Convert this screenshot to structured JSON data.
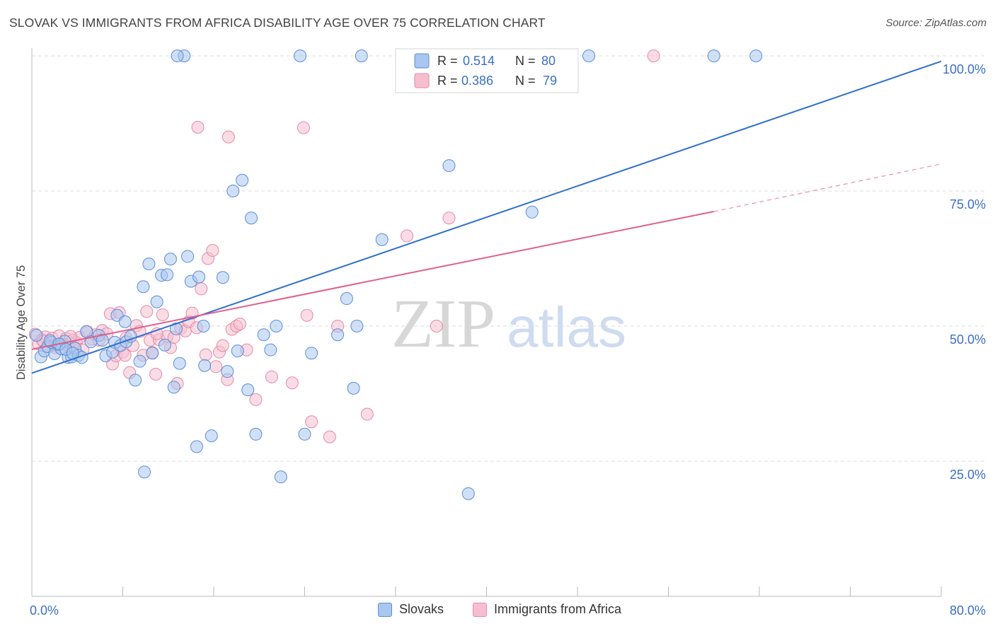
{
  "title": "SLOVAK VS IMMIGRANTS FROM AFRICA DISABILITY AGE OVER 75 CORRELATION CHART",
  "source": "Source: ZipAtlas.com",
  "watermark": {
    "zip": "ZIP",
    "atlas": "atlas"
  },
  "colors": {
    "blue_fill": "#a9c6ef",
    "blue_stroke": "#5b8fd6",
    "blue_line": "#2f6fcf",
    "pink_fill": "#f6bfd0",
    "pink_stroke": "#e58aa8",
    "pink_line": "#e0608a",
    "axis_text": "#3b6fc6",
    "grid": "#dddddd"
  },
  "legend": [
    {
      "r_label": "R =",
      "r_value": "0.514",
      "n_label": "N =",
      "n_value": "80"
    },
    {
      "r_label": "R =",
      "r_value": "0.386",
      "n_label": "N =",
      "n_value": "79"
    }
  ],
  "chart_data": {
    "type": "scatter",
    "title": "SLOVAK VS IMMIGRANTS FROM AFRICA DISABILITY AGE OVER 75 CORRELATION CHART",
    "xlabel": "",
    "ylabel": "Disability Age Over 75",
    "xlim": [
      0,
      80
    ],
    "ylim": [
      0,
      100
    ],
    "x_tick_labels": [
      {
        "value": 0,
        "label": "0.0%"
      },
      {
        "value": 80,
        "label": "80.0%"
      }
    ],
    "y_tick_labels": [
      {
        "value": 25,
        "label": "25.0%"
      },
      {
        "value": 50,
        "label": "50.0%"
      },
      {
        "value": 75,
        "label": "75.0%"
      },
      {
        "value": 100,
        "label": "100.0%"
      }
    ],
    "grid": true,
    "legend_position": "top-center",
    "series": [
      {
        "name": "Slovaks",
        "r": 0.514,
        "n": 80,
        "trend": {
          "x": [
            0,
            80
          ],
          "y": [
            41.3,
            99.0
          ]
        },
        "points": [
          [
            0.4,
            48.3
          ],
          [
            0.8,
            44.3
          ],
          [
            1.1,
            45.4
          ],
          [
            1.4,
            46.2
          ],
          [
            1.7,
            47.0
          ],
          [
            2.0,
            44.9
          ],
          [
            2.3,
            46.6
          ],
          [
            2.6,
            45.8
          ],
          [
            2.9,
            47.2
          ],
          [
            3.2,
            44.2
          ],
          [
            3.5,
            44.3
          ],
          [
            3.8,
            45.9
          ],
          [
            4.1,
            44.6
          ],
          [
            4.4,
            44.2
          ],
          [
            1.6,
            47.3
          ],
          [
            2.4,
            46.7
          ],
          [
            3.0,
            45.7
          ],
          [
            3.6,
            45.0
          ],
          [
            4.8,
            49.0
          ],
          [
            5.2,
            47.1
          ],
          [
            5.9,
            48.3
          ],
          [
            6.2,
            47.4
          ],
          [
            6.5,
            44.5
          ],
          [
            7.1,
            45.2
          ],
          [
            7.3,
            47.0
          ],
          [
            7.5,
            52.0
          ],
          [
            7.8,
            46.4
          ],
          [
            8.2,
            50.8
          ],
          [
            8.3,
            47.1
          ],
          [
            8.7,
            48.1
          ],
          [
            9.1,
            40.0
          ],
          [
            9.5,
            43.5
          ],
          [
            9.8,
            57.3
          ],
          [
            10.3,
            61.5
          ],
          [
            10.6,
            45.0
          ],
          [
            11.0,
            54.5
          ],
          [
            11.4,
            59.4
          ],
          [
            11.7,
            46.5
          ],
          [
            11.9,
            59.5
          ],
          [
            12.2,
            62.4
          ],
          [
            12.5,
            38.7
          ],
          [
            12.7,
            49.5
          ],
          [
            13.0,
            43.1
          ],
          [
            13.4,
            100.0
          ],
          [
            13.7,
            62.9
          ],
          [
            14.0,
            58.3
          ],
          [
            14.7,
            59.1
          ],
          [
            15.1,
            50.0
          ],
          [
            15.2,
            42.7
          ],
          [
            15.8,
            29.7
          ],
          [
            16.8,
            59.0
          ],
          [
            17.2,
            41.6
          ],
          [
            17.7,
            75.0
          ],
          [
            18.1,
            45.4
          ],
          [
            18.5,
            77.0
          ],
          [
            19.0,
            38.2
          ],
          [
            19.3,
            70.0
          ],
          [
            19.7,
            30.0
          ],
          [
            20.4,
            48.4
          ],
          [
            21.0,
            45.6
          ],
          [
            21.5,
            50.0
          ],
          [
            21.9,
            22.1
          ],
          [
            14.5,
            27.7
          ],
          [
            12.8,
            100.0
          ],
          [
            9.9,
            23.0
          ],
          [
            23.6,
            100.0
          ],
          [
            24.0,
            30.0
          ],
          [
            24.6,
            45.0
          ],
          [
            26.9,
            48.4
          ],
          [
            27.7,
            55.1
          ],
          [
            28.3,
            38.5
          ],
          [
            28.6,
            50.0
          ],
          [
            29.0,
            100.0
          ],
          [
            30.8,
            66.0
          ],
          [
            36.7,
            79.7
          ],
          [
            38.4,
            19.0
          ],
          [
            44.0,
            71.1
          ],
          [
            49.0,
            100.0
          ],
          [
            60.0,
            100.0
          ],
          [
            63.7,
            100.0
          ]
        ]
      },
      {
        "name": "Immigrants from Africa",
        "r": 0.386,
        "n": 79,
        "trend": {
          "x": [
            0,
            60
          ],
          "y": [
            45.7,
            71.2
          ]
        },
        "trend_dashed_ext": {
          "x": [
            60,
            80
          ],
          "y": [
            71.2,
            80.0
          ]
        },
        "points": [
          [
            0.3,
            48.5
          ],
          [
            0.6,
            46.7
          ],
          [
            0.9,
            47.5
          ],
          [
            1.2,
            48.0
          ],
          [
            1.5,
            46.3
          ],
          [
            1.8,
            47.8
          ],
          [
            2.1,
            46.0
          ],
          [
            2.4,
            48.2
          ],
          [
            2.7,
            46.6
          ],
          [
            3.0,
            47.7
          ],
          [
            3.3,
            46.1
          ],
          [
            3.6,
            47.4
          ],
          [
            3.9,
            47.0
          ],
          [
            4.2,
            47.9
          ],
          [
            1.0,
            47.2
          ],
          [
            2.0,
            46.5
          ],
          [
            3.4,
            48.1
          ],
          [
            4.5,
            45.6
          ],
          [
            4.9,
            48.9
          ],
          [
            5.3,
            47.6
          ],
          [
            5.6,
            48.4
          ],
          [
            5.9,
            47.4
          ],
          [
            6.2,
            49.2
          ],
          [
            6.6,
            48.6
          ],
          [
            6.9,
            52.3
          ],
          [
            7.1,
            43.0
          ],
          [
            7.4,
            44.5
          ],
          [
            7.7,
            52.5
          ],
          [
            8.0,
            45.2
          ],
          [
            8.3,
            47.8
          ],
          [
            8.6,
            41.4
          ],
          [
            8.9,
            46.4
          ],
          [
            9.2,
            50.1
          ],
          [
            9.5,
            49.0
          ],
          [
            9.8,
            44.6
          ],
          [
            10.1,
            52.7
          ],
          [
            10.4,
            47.4
          ],
          [
            10.6,
            45.1
          ],
          [
            10.9,
            41.1
          ],
          [
            11.2,
            47.5
          ],
          [
            11.5,
            52.1
          ],
          [
            11.9,
            48.1
          ],
          [
            12.2,
            46.0
          ],
          [
            12.5,
            47.9
          ],
          [
            12.8,
            39.4
          ],
          [
            13.1,
            49.6
          ],
          [
            13.5,
            49.1
          ],
          [
            13.8,
            50.8
          ],
          [
            14.1,
            52.4
          ],
          [
            14.5,
            49.7
          ],
          [
            14.9,
            56.9
          ],
          [
            15.3,
            44.7
          ],
          [
            15.5,
            62.5
          ],
          [
            15.9,
            64.0
          ],
          [
            16.2,
            42.5
          ],
          [
            16.5,
            45.2
          ],
          [
            16.8,
            46.4
          ],
          [
            17.2,
            40.1
          ],
          [
            17.6,
            49.4
          ],
          [
            18.0,
            50.0
          ],
          [
            18.9,
            45.6
          ],
          [
            19.7,
            36.4
          ],
          [
            21.1,
            40.6
          ],
          [
            22.9,
            39.5
          ],
          [
            24.2,
            52.0
          ],
          [
            24.6,
            32.3
          ],
          [
            26.2,
            29.5
          ],
          [
            26.9,
            50.0
          ],
          [
            29.5,
            33.7
          ],
          [
            33.0,
            66.7
          ],
          [
            35.6,
            50.0
          ],
          [
            36.7,
            70.0
          ],
          [
            14.6,
            86.8
          ],
          [
            17.3,
            85.0
          ],
          [
            23.9,
            86.7
          ],
          [
            54.7,
            100.0
          ],
          [
            18.3,
            50.4
          ],
          [
            8.2,
            44.6
          ],
          [
            11.0,
            48.6
          ]
        ]
      }
    ]
  },
  "bottom_legend": [
    {
      "label": "Slovaks"
    },
    {
      "label": "Immigrants from Africa"
    }
  ]
}
